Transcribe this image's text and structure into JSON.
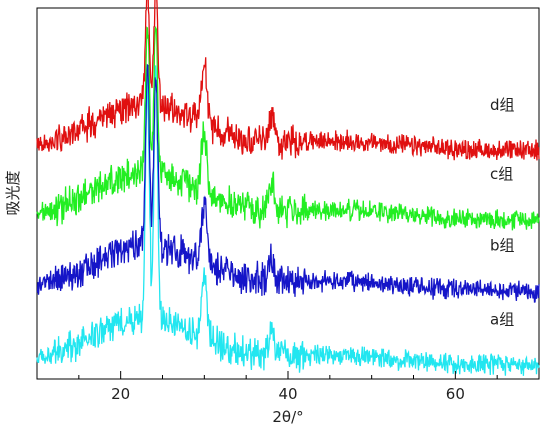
{
  "chart_data": {
    "type": "line",
    "xlabel": "2θ/°",
    "ylabel": "吸光度",
    "xlim": [
      10,
      70
    ],
    "xticks": [
      20,
      40,
      60
    ],
    "grid": false,
    "legend": "labels placed at right end of each curve",
    "series": [
      {
        "name": "a组",
        "color": "#22e6f0",
        "baseline": 0.5,
        "peaks": [
          [
            23.2,
            8.5
          ],
          [
            24.2,
            8.8
          ],
          [
            30.0,
            2.3
          ],
          [
            38.0,
            1.0
          ]
        ]
      },
      {
        "name": "b组",
        "color": "#1515c8",
        "baseline": 3.2,
        "peaks": [
          [
            23.2,
            6.5
          ],
          [
            24.2,
            6.3
          ],
          [
            30.0,
            2.2
          ],
          [
            38.0,
            1.0
          ]
        ]
      },
      {
        "name": "c组",
        "color": "#22ee22",
        "baseline": 5.8,
        "peaks": [
          [
            23.2,
            5.4
          ],
          [
            24.2,
            5.4
          ],
          [
            30.0,
            2.2
          ],
          [
            38.0,
            1.0
          ]
        ]
      },
      {
        "name": "d组",
        "color": "#e01010",
        "baseline": 8.3,
        "peaks": [
          [
            23.2,
            4.2
          ],
          [
            24.2,
            4.2
          ],
          [
            30.0,
            2.1
          ],
          [
            38.0,
            1.0
          ]
        ]
      }
    ]
  }
}
